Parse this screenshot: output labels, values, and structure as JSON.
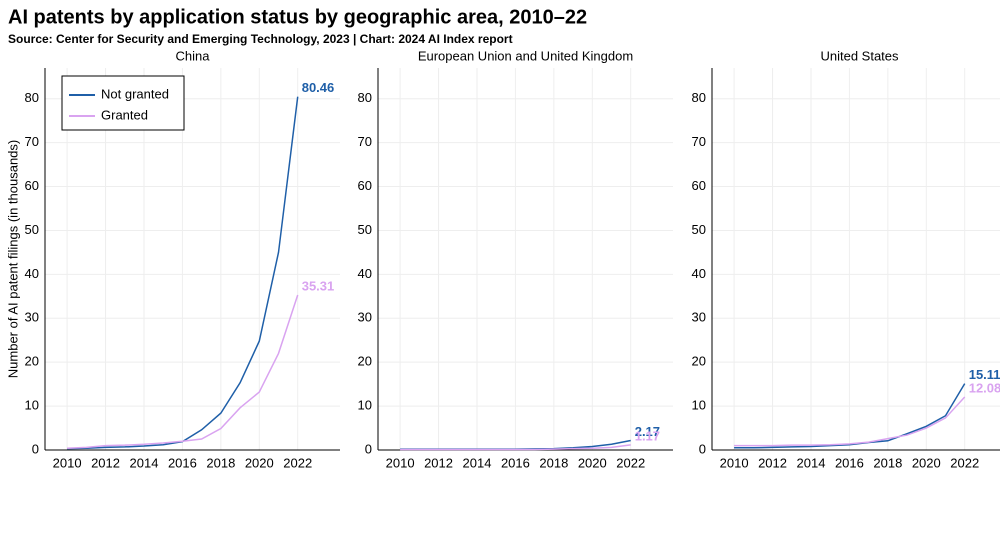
{
  "title": "AI patents by application status by geographic area, 2010–22",
  "subtitle": "Source: Center for Security and Emerging Technology, 2023 | Chart: 2024 AI Index report",
  "chart_data": [
    {
      "type": "line",
      "title": "China",
      "y_label": "Number of AI patent filings (in thousands)",
      "legend": "upper left",
      "grid": true,
      "x": [
        2010,
        2011,
        2012,
        2013,
        2014,
        2015,
        2016,
        2017,
        2018,
        2019,
        2020,
        2021,
        2022
      ],
      "series": [
        {
          "name": "Not granted",
          "color": "#1f5fa8",
          "values": [
            0.3,
            0.4,
            0.6,
            0.7,
            0.9,
            1.2,
            1.9,
            4.6,
            8.4,
            15.3,
            24.8,
            45,
            80.46
          ]
        },
        {
          "name": "Granted",
          "color": "#d9a3f0",
          "values": [
            0.4,
            0.6,
            1.0,
            1.1,
            1.3,
            1.6,
            2.0,
            2.5,
            4.9,
            9.6,
            13.2,
            22,
            35.31
          ]
        }
      ],
      "xlim": [
        2008.85,
        2024.2
      ],
      "ylim": [
        0,
        87
      ],
      "xticks": [
        2010,
        2012,
        2014,
        2016,
        2018,
        2020,
        2022
      ],
      "yticks": [
        0,
        10,
        20,
        30,
        40,
        50,
        60,
        70,
        80
      ]
    },
    {
      "type": "line",
      "title": "European Union and United Kingdom",
      "grid": true,
      "x": [
        2010,
        2011,
        2012,
        2013,
        2014,
        2015,
        2016,
        2017,
        2018,
        2019,
        2020,
        2021,
        2022
      ],
      "series": [
        {
          "color": "#1f5fa8",
          "values": [
            0.2,
            0.2,
            0.2,
            0.2,
            0.2,
            0.2,
            0.2,
            0.25,
            0.3,
            0.5,
            0.8,
            1.3,
            2.17
          ]
        },
        {
          "color": "#d9a3f0",
          "values": [
            0.1,
            0.1,
            0.1,
            0.1,
            0.1,
            0.1,
            0.1,
            0.1,
            0.2,
            0.3,
            0.4,
            0.6,
            1.17
          ]
        }
      ],
      "xlim": [
        2008.85,
        2024.2
      ],
      "ylim": [
        0,
        87
      ],
      "xticks": [
        2010,
        2012,
        2014,
        2016,
        2018,
        2020,
        2022
      ],
      "yticks": [
        0,
        10,
        20,
        30,
        40,
        50,
        60,
        70,
        80
      ]
    },
    {
      "type": "line",
      "title": "United States",
      "grid": true,
      "x": [
        2010,
        2011,
        2012,
        2013,
        2014,
        2015,
        2016,
        2017,
        2018,
        2019,
        2020,
        2021,
        2022
      ],
      "series": [
        {
          "color": "#1f5fa8",
          "values": [
            0.5,
            0.5,
            0.6,
            0.7,
            0.8,
            1.0,
            1.2,
            1.7,
            2.1,
            3.7,
            5.4,
            7.8,
            15.11
          ]
        },
        {
          "color": "#d9a3f0",
          "values": [
            1.0,
            1.0,
            1.0,
            1.1,
            1.1,
            1.2,
            1.4,
            1.8,
            2.6,
            3.4,
            5.0,
            7.3,
            12.08
          ]
        }
      ],
      "xlim": [
        2008.85,
        2024.2
      ],
      "ylim": [
        0,
        87
      ],
      "xticks": [
        2010,
        2012,
        2014,
        2016,
        2018,
        2020,
        2022
      ],
      "yticks": [
        0,
        10,
        20,
        30,
        40,
        50,
        60,
        70,
        80
      ]
    }
  ]
}
